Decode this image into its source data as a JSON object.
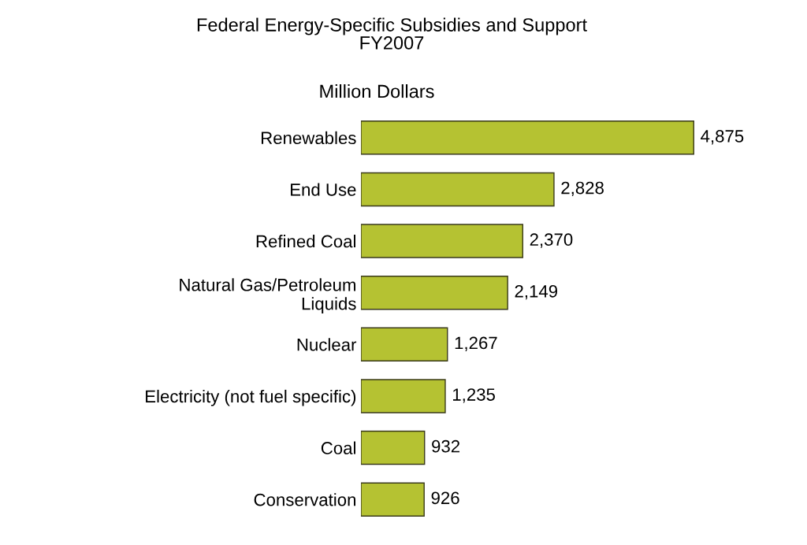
{
  "chart_data": {
    "type": "bar",
    "orientation": "horizontal",
    "title": "Federal Energy-Specific Subsidies and Support\nFY2007",
    "subtitle": "Million Dollars",
    "categories": [
      "Renewables",
      "End Use",
      "Refined Coal",
      "Natural Gas/Petroleum\nLiquids",
      "Nuclear",
      "Electricity (not fuel specific)",
      "Coal",
      "Conservation"
    ],
    "values": [
      4875,
      2828,
      2370,
      2149,
      1267,
      1235,
      932,
      926
    ],
    "value_labels": [
      "4,875",
      "2,828",
      "2,370",
      "2,149",
      "1,267",
      "1,235",
      "932",
      "926"
    ],
    "color": "#b5c232",
    "grid": false,
    "legend": false
  }
}
